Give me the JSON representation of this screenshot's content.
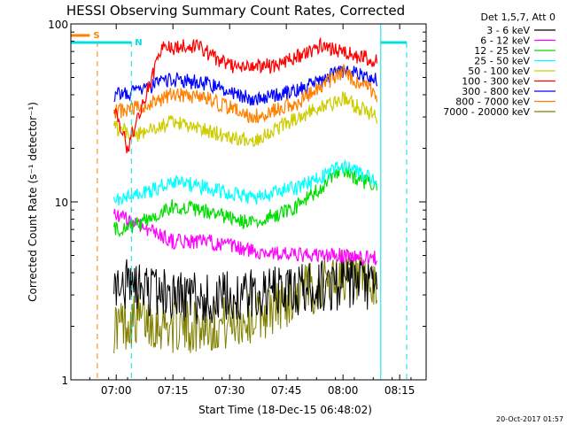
{
  "chart_data": {
    "type": "line",
    "title": "HESSI Observing Summary Count Rates, Corrected",
    "xlabel": "Start Time (18-Dec-15 06:48:02)",
    "ylabel": "Corrected Count Rate (s⁻¹ detector⁻¹)",
    "x_ticks": [
      "07:00",
      "07:15",
      "07:30",
      "07:45",
      "08:00",
      "08:15"
    ],
    "x_range": [
      "06:48",
      "08:22"
    ],
    "y_scale": "log",
    "y_ticks": [
      "1",
      "10",
      "100"
    ],
    "ylim": [
      1,
      100
    ],
    "legend_header": "Det 1,5,7, Att 0",
    "legend_position": "right",
    "date_stamp": "20-Oct-2017 01:57",
    "markers": [
      {
        "label": "S",
        "color": "#ff8000",
        "line_time": "06:55",
        "bar_start": "06:48",
        "bar_end": "06:53"
      },
      {
        "label": "N",
        "color": "#00e0e0",
        "line_time": "07:04",
        "bar_start": "06:48",
        "bar_end": "07:04",
        "right_bar_start": "08:10",
        "right_bar_end": "08:23"
      }
    ],
    "series": [
      {
        "name": "3 - 6 keV",
        "color": "#000000",
        "values": [
          [
            6.99,
            3.5
          ],
          [
            7.1,
            3.3
          ],
          [
            7.25,
            3.0
          ],
          [
            7.4,
            2.8
          ],
          [
            7.6,
            3.0
          ],
          [
            7.8,
            3.2
          ],
          [
            8.0,
            3.5
          ],
          [
            8.15,
            3.3
          ]
        ]
      },
      {
        "name": "6 - 12 keV",
        "color": "#ff00ff",
        "values": [
          [
            6.99,
            8.5
          ],
          [
            7.1,
            7.5
          ],
          [
            7.25,
            6.0
          ],
          [
            7.4,
            6.0
          ],
          [
            7.6,
            5.3
          ],
          [
            7.8,
            5.0
          ],
          [
            8.0,
            5.0
          ],
          [
            8.15,
            4.8
          ]
        ]
      },
      {
        "name": "12 - 25 keV",
        "color": "#00dd00",
        "values": [
          [
            6.99,
            7.0
          ],
          [
            7.1,
            7.5
          ],
          [
            7.25,
            9.5
          ],
          [
            7.4,
            8.8
          ],
          [
            7.6,
            7.5
          ],
          [
            7.8,
            9.5
          ],
          [
            8.0,
            15.0
          ],
          [
            8.15,
            12.0
          ]
        ]
      },
      {
        "name": "25 - 50 keV",
        "color": "#00ffff",
        "values": [
          [
            6.99,
            10.0
          ],
          [
            7.1,
            11.0
          ],
          [
            7.25,
            13.0
          ],
          [
            7.4,
            12.0
          ],
          [
            7.6,
            10.5
          ],
          [
            7.8,
            12.0
          ],
          [
            8.0,
            16.0
          ],
          [
            8.15,
            13.0
          ]
        ]
      },
      {
        "name": "50 - 100 keV",
        "color": "#cccc00",
        "values": [
          [
            6.99,
            26.0
          ],
          [
            7.1,
            24.0
          ],
          [
            7.25,
            28.0
          ],
          [
            7.4,
            25.0
          ],
          [
            7.6,
            22.0
          ],
          [
            7.8,
            30.0
          ],
          [
            8.0,
            38.0
          ],
          [
            8.15,
            30.0
          ]
        ]
      },
      {
        "name": "100 - 300 keV",
        "color": "#ff0000",
        "values": [
          [
            6.99,
            34.0
          ],
          [
            7.05,
            20.0
          ],
          [
            7.2,
            72.0
          ],
          [
            7.35,
            76.0
          ],
          [
            7.5,
            58.0
          ],
          [
            7.7,
            58.0
          ],
          [
            7.9,
            75.0
          ],
          [
            8.15,
            62.0
          ]
        ]
      },
      {
        "name": "300 - 800 keV",
        "color": "#0000ff",
        "values": [
          [
            6.99,
            40.0
          ],
          [
            7.1,
            42.0
          ],
          [
            7.25,
            49.0
          ],
          [
            7.4,
            46.0
          ],
          [
            7.6,
            38.0
          ],
          [
            7.8,
            42.0
          ],
          [
            8.0,
            55.0
          ],
          [
            8.15,
            48.0
          ]
        ]
      },
      {
        "name": "800 - 7000 keV",
        "color": "#ff8000",
        "values": [
          [
            6.99,
            32.0
          ],
          [
            7.1,
            34.0
          ],
          [
            7.25,
            40.0
          ],
          [
            7.4,
            38.0
          ],
          [
            7.6,
            30.0
          ],
          [
            7.8,
            36.0
          ],
          [
            8.0,
            54.0
          ],
          [
            8.15,
            40.0
          ]
        ]
      },
      {
        "name": "7000 - 20000 keV",
        "color": "#808000",
        "values": [
          [
            6.99,
            2.0
          ],
          [
            7.1,
            2.2
          ],
          [
            7.25,
            2.0
          ],
          [
            7.4,
            2.0
          ],
          [
            7.6,
            2.2
          ],
          [
            7.8,
            3.0
          ],
          [
            8.0,
            4.0
          ],
          [
            8.15,
            3.0
          ]
        ]
      }
    ]
  }
}
